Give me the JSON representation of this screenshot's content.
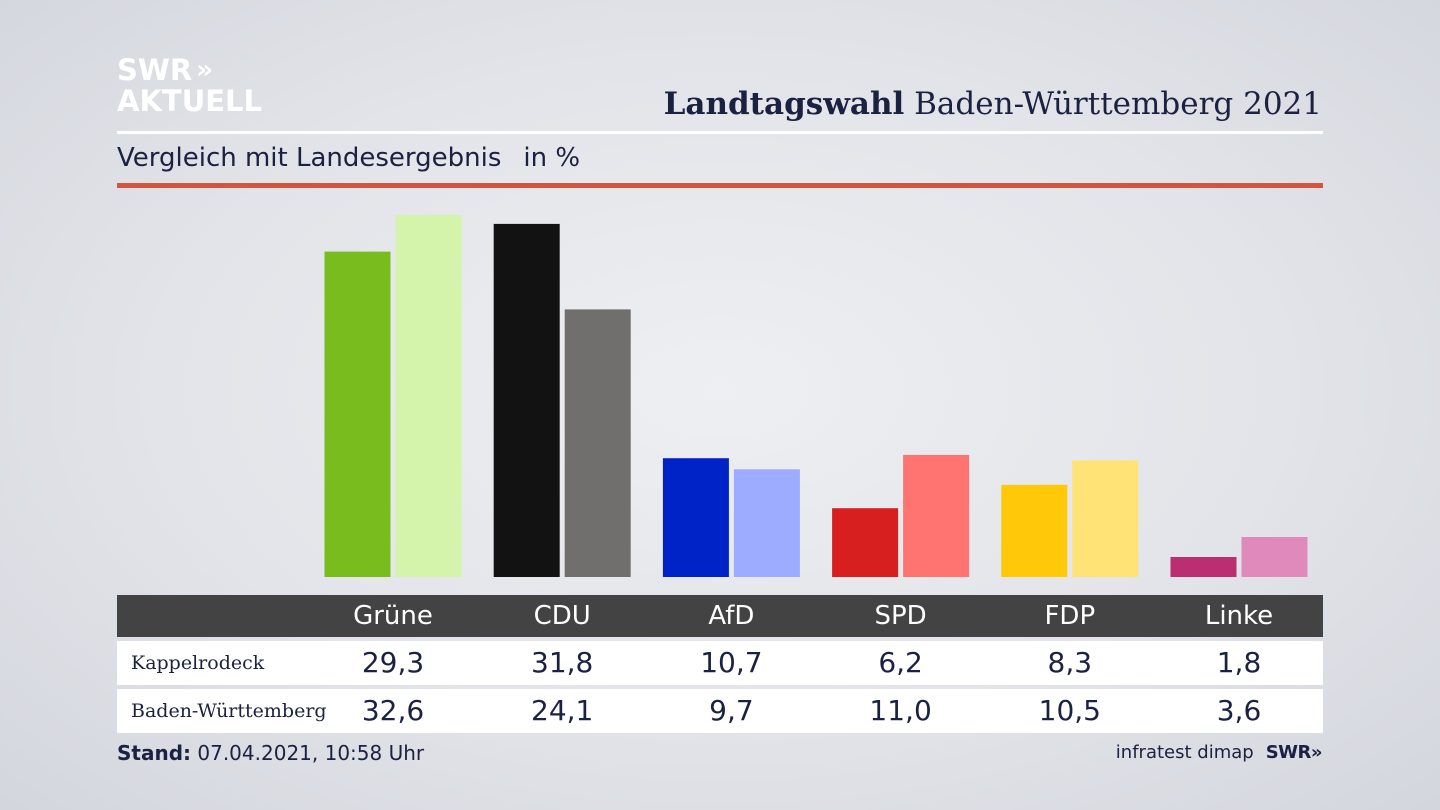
{
  "logo": {
    "line1": "SWR",
    "chevrons": "»",
    "line2": "AKTUELL"
  },
  "header": {
    "title_bold": "Landtagswahl",
    "title_rest": "Baden-Württemberg 2021"
  },
  "subtitle": {
    "text": "Vergleich mit Landesergebnis",
    "unit": "in %"
  },
  "colors": {
    "accent_rule": "#d25540",
    "table_header_bg": "#434343"
  },
  "chart_data": {
    "type": "bar",
    "categories": [
      "Grüne",
      "CDU",
      "AfD",
      "SPD",
      "FDP",
      "Linke"
    ],
    "series": [
      {
        "name": "Kappelrodeck",
        "values": [
          29.3,
          31.8,
          10.7,
          6.2,
          8.3,
          1.8
        ],
        "colors": [
          "#78bc1e",
          "#121212",
          "#0023c7",
          "#d71f1f",
          "#ffc90a",
          "#bc2e72"
        ]
      },
      {
        "name": "Baden-Württemberg",
        "values": [
          32.6,
          24.1,
          9.7,
          11.0,
          10.5,
          3.6
        ],
        "colors": [
          "#d5f4ab",
          "#706f6d",
          "#9dacff",
          "#ff7470",
          "#ffe377",
          "#e089bb"
        ]
      }
    ],
    "ylim": [
      0,
      32.6
    ]
  },
  "table": {
    "headers": [
      "Grüne",
      "CDU",
      "AfD",
      "SPD",
      "FDP",
      "Linke"
    ],
    "rows": [
      {
        "label": "Kappelrodeck",
        "values": [
          "29,3",
          "31,8",
          "10,7",
          "6,2",
          "8,3",
          "1,8"
        ]
      },
      {
        "label": "Baden-Württemberg",
        "values": [
          "32,6",
          "24,1",
          "9,7",
          "11,0",
          "10,5",
          "3,6"
        ]
      }
    ]
  },
  "footer": {
    "stand_label": "Stand:",
    "stand_value": "07.04.2021, 10:58 Uhr",
    "source": "infratest dimap",
    "brand": "SWR»"
  }
}
